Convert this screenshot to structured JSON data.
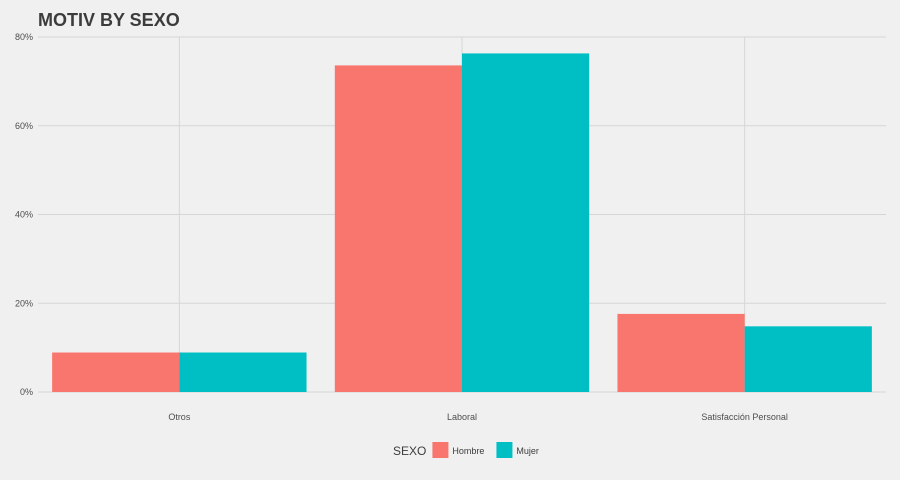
{
  "chart_data": {
    "type": "bar",
    "title": "MOTIV BY SEXO",
    "xlabel": "",
    "ylabel": "",
    "categories": [
      "Otros",
      "Laboral",
      "Satisfacción Personal"
    ],
    "series": [
      {
        "name": "Hombre",
        "values": [
          8.9,
          73.6,
          17.6
        ],
        "color": "#f8766d"
      },
      {
        "name": "Mujer",
        "values": [
          8.9,
          76.3,
          14.8
        ],
        "color": "#00bfc4"
      }
    ],
    "ylim": [
      0,
      80
    ],
    "yticks": [
      0,
      20,
      40,
      60,
      80
    ],
    "ytick_labels": [
      "0%",
      "20%",
      "40%",
      "60%",
      "80%"
    ],
    "grid": true,
    "legend": {
      "title": "SEXO",
      "placement": "bottom",
      "entries": [
        "Hombre",
        "Mujer"
      ]
    }
  }
}
